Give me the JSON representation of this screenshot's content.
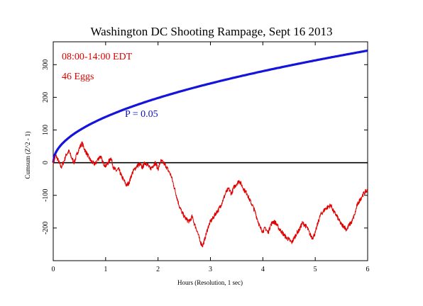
{
  "colors": {
    "background": "#ffffff",
    "axis": "#000000",
    "envelope": "#1414dc",
    "cumsum": "#e00000",
    "annotation_red": "#e00000",
    "annotation_blue": "#1010c8"
  },
  "chart_data": {
    "type": "line",
    "title": "Washington DC Shooting Rampage, Sept 16 2013",
    "xlabel": "Hours (Resolution, 1 sec)",
    "ylabel": "Cumsum (Z^2 - 1)",
    "xlim": [
      0,
      6
    ],
    "ylim": [
      -300,
      370
    ],
    "x_ticks": [
      0,
      1,
      2,
      3,
      4,
      5,
      6
    ],
    "y_ticks": [
      -200,
      -100,
      0,
      100,
      200,
      300
    ],
    "grid": false,
    "annotations": {
      "time_range": "08:00-14:00 EDT",
      "eggs": "46 Eggs",
      "probability": "P = 0.05"
    },
    "series": [
      {
        "role": "probability-envelope",
        "color": "#1414dc",
        "formula": "y = 140 * sqrt(x)",
        "x": [
          0,
          0.1,
          0.25,
          0.5,
          0.75,
          1,
          1.5,
          2,
          2.5,
          3,
          3.5,
          4,
          4.5,
          5,
          5.5,
          6
        ],
        "values": [
          0,
          44,
          70,
          99,
          121,
          140,
          171,
          198,
          221,
          242,
          262,
          280,
          297,
          313,
          328,
          343
        ]
      },
      {
        "role": "cumulative-deviation",
        "color": "#e00000",
        "x": [
          0,
          0.05,
          0.1,
          0.15,
          0.2,
          0.25,
          0.3,
          0.35,
          0.4,
          0.45,
          0.5,
          0.55,
          0.6,
          0.65,
          0.7,
          0.75,
          0.8,
          0.85,
          0.9,
          0.95,
          1.0,
          1.05,
          1.1,
          1.15,
          1.2,
          1.25,
          1.3,
          1.35,
          1.4,
          1.45,
          1.5,
          1.55,
          1.6,
          1.65,
          1.7,
          1.75,
          1.8,
          1.85,
          1.9,
          1.95,
          2.0,
          2.05,
          2.1,
          2.15,
          2.2,
          2.25,
          2.3,
          2.35,
          2.4,
          2.45,
          2.5,
          2.55,
          2.6,
          2.65,
          2.7,
          2.75,
          2.8,
          2.85,
          2.9,
          2.95,
          3.0,
          3.05,
          3.1,
          3.15,
          3.2,
          3.25,
          3.3,
          3.35,
          3.4,
          3.45,
          3.5,
          3.55,
          3.6,
          3.65,
          3.7,
          3.75,
          3.8,
          3.85,
          3.9,
          3.95,
          4.0,
          4.05,
          4.1,
          4.15,
          4.2,
          4.25,
          4.3,
          4.35,
          4.4,
          4.45,
          4.5,
          4.55,
          4.6,
          4.65,
          4.7,
          4.75,
          4.8,
          4.85,
          4.9,
          4.95,
          5.0,
          5.05,
          5.1,
          5.15,
          5.2,
          5.25,
          5.3,
          5.35,
          5.4,
          5.45,
          5.5,
          5.55,
          5.6,
          5.65,
          5.7,
          5.75,
          5.8,
          5.85,
          5.9,
          5.95,
          6.0
        ],
        "values": [
          0,
          22,
          5,
          -15,
          2,
          25,
          35,
          15,
          0,
          25,
          45,
          60,
          40,
          25,
          10,
          0,
          -5,
          10,
          20,
          0,
          -10,
          0,
          15,
          -15,
          -25,
          -20,
          -40,
          -55,
          -70,
          -60,
          -35,
          -20,
          -10,
          -5,
          -15,
          0,
          -5,
          -20,
          -10,
          0,
          -20,
          5,
          0,
          -10,
          -25,
          -40,
          -70,
          -100,
          -130,
          -150,
          -165,
          -175,
          -180,
          -165,
          -190,
          -210,
          -240,
          -255,
          -230,
          -200,
          -180,
          -170,
          -155,
          -145,
          -130,
          -110,
          -90,
          -80,
          -95,
          -75,
          -65,
          -55,
          -70,
          -85,
          -95,
          -115,
          -130,
          -150,
          -175,
          -200,
          -210,
          -200,
          -215,
          -190,
          -180,
          -185,
          -200,
          -210,
          -220,
          -230,
          -235,
          -245,
          -230,
          -215,
          -205,
          -185,
          -190,
          -200,
          -220,
          -230,
          -215,
          -185,
          -160,
          -150,
          -140,
          -135,
          -130,
          -150,
          -160,
          -175,
          -190,
          -195,
          -205,
          -190,
          -180,
          -160,
          -130,
          -115,
          -100,
          -90,
          -85
        ]
      }
    ]
  }
}
